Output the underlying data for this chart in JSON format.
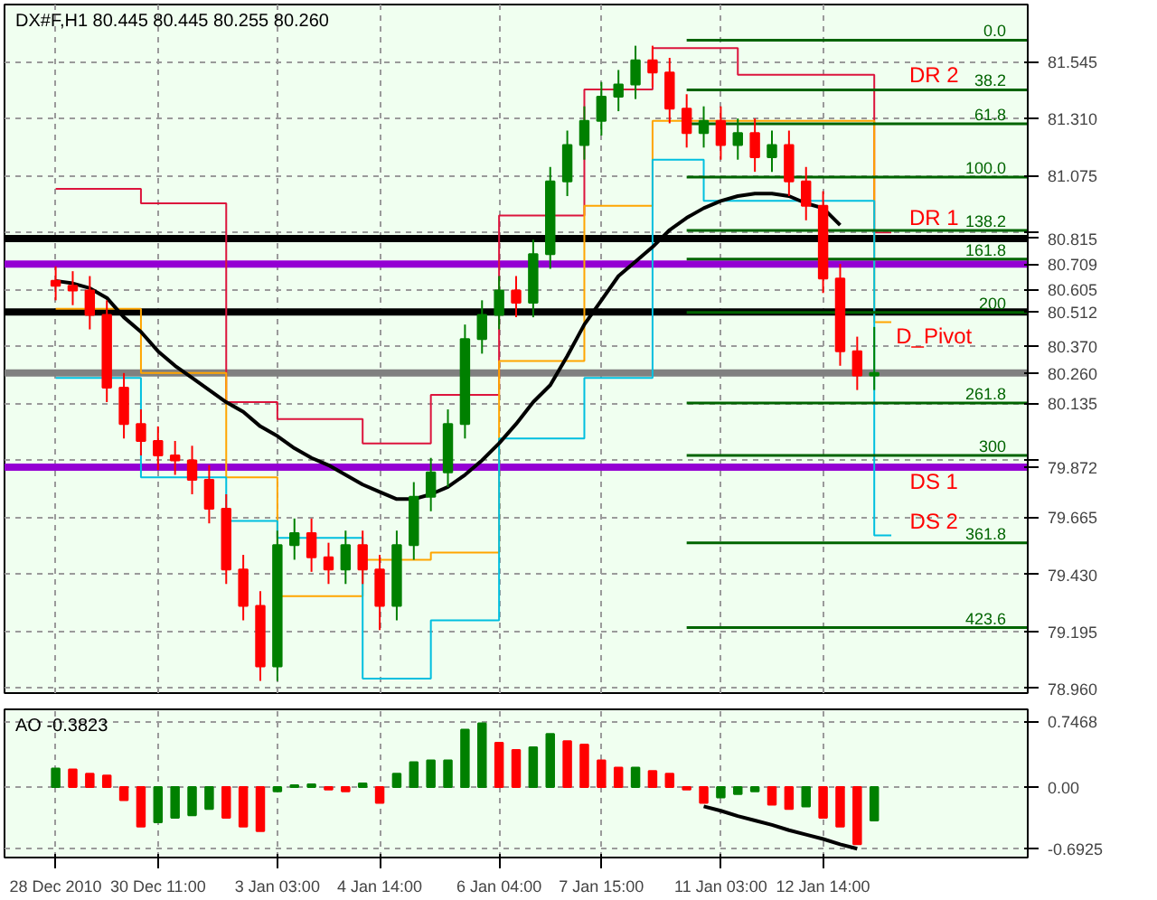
{
  "chart_data": [
    {
      "type": "candlestick",
      "title": "DX#F,H1  80.445 80.445 80.255 80.260",
      "tick_labels": "y",
      "grid": true,
      "categories": [
        null,
        null,
        null,
        null,
        null,
        null,
        null,
        null,
        null,
        null,
        null,
        null,
        null,
        null,
        null,
        null,
        null,
        null,
        null,
        null,
        null,
        null,
        null,
        null,
        null,
        null,
        null,
        null,
        null,
        null,
        null,
        null,
        null,
        null,
        null,
        null,
        null,
        null,
        null,
        null,
        null,
        null,
        null,
        null,
        null,
        null,
        null,
        null,
        null,
        null,
        null,
        null,
        null,
        null,
        null,
        null,
        null,
        null
      ],
      "ylim": [
        78.94,
        81.78
      ],
      "yticks": [
        {
          "value": 81.545,
          "label": "81.545"
        },
        {
          "value": 81.31,
          "label": "81.310"
        },
        {
          "value": 81.075,
          "label": "81.075"
        },
        {
          "value": 80.84,
          "label": null
        },
        {
          "value": 80.605,
          "label": "80.605"
        },
        {
          "value": 80.37,
          "label": "80.370"
        },
        {
          "value": 80.135,
          "label": "80.135"
        },
        {
          "value": 79.9,
          "label": null
        },
        {
          "value": 79.665,
          "label": "79.665"
        },
        {
          "value": 79.43,
          "label": "79.430"
        },
        {
          "value": 79.195,
          "label": "79.195"
        },
        {
          "value": 78.96,
          "label": "78.960"
        }
      ],
      "ohlc": [
        [
          80.64,
          80.7,
          80.56,
          80.62
        ],
        [
          80.62,
          80.68,
          80.54,
          80.6
        ],
        [
          80.6,
          80.66,
          80.44,
          80.5
        ],
        [
          80.5,
          80.56,
          80.14,
          80.2
        ],
        [
          80.2,
          80.26,
          79.99,
          80.05
        ],
        [
          80.05,
          80.11,
          79.92,
          79.98
        ],
        [
          79.98,
          80.04,
          79.86,
          79.92
        ],
        [
          79.92,
          79.98,
          79.84,
          79.9
        ],
        [
          79.9,
          79.96,
          79.76,
          79.82
        ],
        [
          79.82,
          79.88,
          79.64,
          79.7
        ],
        [
          79.7,
          79.76,
          79.39,
          79.45
        ],
        [
          79.45,
          79.51,
          79.24,
          79.3
        ],
        [
          79.3,
          79.36,
          78.99,
          79.05
        ],
        [
          79.05,
          79.61,
          78.99,
          79.55
        ],
        [
          79.55,
          79.66,
          79.49,
          79.6
        ],
        [
          79.6,
          79.66,
          79.44,
          79.5
        ],
        [
          79.5,
          79.56,
          79.39,
          79.45
        ],
        [
          79.45,
          79.61,
          79.39,
          79.55
        ],
        [
          79.55,
          79.61,
          79.39,
          79.45
        ],
        [
          79.45,
          79.51,
          79.2,
          79.3
        ],
        [
          79.3,
          79.61,
          79.24,
          79.55
        ],
        [
          79.55,
          79.81,
          79.49,
          79.75
        ],
        [
          79.75,
          79.91,
          79.69,
          79.85
        ],
        [
          79.85,
          80.11,
          79.79,
          80.05
        ],
        [
          80.05,
          80.46,
          79.99,
          80.4
        ],
        [
          80.4,
          80.56,
          80.34,
          80.5
        ],
        [
          80.5,
          80.66,
          80.44,
          80.6
        ],
        [
          80.6,
          80.66,
          80.49,
          80.55
        ],
        [
          80.55,
          80.81,
          80.49,
          80.75
        ],
        [
          80.75,
          81.11,
          80.69,
          81.05
        ],
        [
          81.05,
          81.26,
          80.99,
          81.2
        ],
        [
          81.2,
          81.36,
          81.14,
          81.3
        ],
        [
          81.3,
          81.46,
          81.24,
          81.4
        ],
        [
          81.4,
          81.51,
          81.34,
          81.45
        ],
        [
          81.45,
          81.61,
          81.39,
          81.55
        ],
        [
          81.55,
          81.61,
          81.44,
          81.5
        ],
        [
          81.5,
          81.56,
          81.29,
          81.35
        ],
        [
          81.35,
          81.41,
          81.19,
          81.25
        ],
        [
          81.25,
          81.36,
          81.19,
          81.3
        ],
        [
          81.3,
          81.36,
          81.14,
          81.2
        ],
        [
          81.2,
          81.31,
          81.14,
          81.25
        ],
        [
          81.25,
          81.31,
          81.09,
          81.15
        ],
        [
          81.15,
          81.26,
          81.09,
          81.2
        ],
        [
          81.2,
          81.26,
          80.99,
          81.05
        ],
        [
          81.05,
          81.11,
          80.89,
          80.95
        ],
        [
          80.95,
          81.01,
          80.59,
          80.65
        ],
        [
          80.65,
          80.71,
          80.29,
          80.35
        ],
        [
          80.35,
          80.41,
          80.19,
          80.25
        ],
        [
          80.25,
          80.45,
          80.19,
          80.26
        ],
        null,
        null,
        null,
        null,
        null,
        null,
        null,
        null,
        null
      ],
      "colors": [
        "#ff0000",
        "#ff0000",
        "#ff0000",
        "#ff0000",
        "#ff0000",
        "#ff0000",
        "#ff0000",
        "#ff0000",
        "#ff0000",
        "#ff0000",
        "#ff0000",
        "#ff0000",
        "#ff0000",
        "#008000",
        "#008000",
        "#ff0000",
        "#ff0000",
        "#008000",
        "#ff0000",
        "#ff0000",
        "#008000",
        "#008000",
        "#008000",
        "#008000",
        "#008000",
        "#008000",
        "#008000",
        "#ff0000",
        "#008000",
        "#008000",
        "#008000",
        "#008000",
        "#008000",
        "#008000",
        "#008000",
        "#ff0000",
        "#ff0000",
        "#ff0000",
        "#008000",
        "#ff0000",
        "#008000",
        "#ff0000",
        "#008000",
        "#ff0000",
        "#ff0000",
        "#ff0000",
        "#ff0000",
        "#ff0000",
        "#008000",
        null,
        null,
        null,
        null,
        null,
        null,
        null,
        null,
        null
      ],
      "series": [
        {
          "type": "step",
          "color": "#dc143c",
          "values": [
            81.02,
            81.02,
            81.02,
            81.02,
            81.02,
            80.96,
            80.96,
            80.96,
            80.96,
            80.96,
            80.14,
            80.14,
            80.14,
            80.07,
            80.07,
            80.07,
            80.07,
            80.07,
            79.97,
            79.97,
            79.97,
            79.97,
            80.17,
            80.17,
            80.17,
            80.17,
            80.91,
            80.91,
            80.91,
            80.91,
            80.91,
            81.43,
            81.43,
            81.43,
            81.43,
            81.6,
            81.6,
            81.6,
            81.6,
            81.6,
            81.49,
            81.49,
            81.49,
            81.49,
            81.49,
            81.49,
            81.49,
            81.49,
            80.84,
            80.84,
            null,
            null,
            null,
            null,
            null,
            null,
            null,
            null
          ]
        },
        {
          "type": "step",
          "color": "#ffa500",
          "values": [
            80.525,
            80.525,
            80.525,
            80.525,
            80.525,
            80.26,
            80.26,
            80.26,
            80.26,
            80.26,
            79.83,
            79.83,
            79.83,
            79.34,
            79.34,
            79.34,
            79.34,
            79.34,
            79.49,
            79.49,
            79.49,
            79.49,
            79.52,
            79.52,
            79.52,
            79.52,
            80.31,
            80.31,
            80.31,
            80.31,
            80.31,
            80.95,
            80.95,
            80.95,
            80.95,
            81.3,
            81.3,
            81.3,
            81.3,
            81.3,
            81.3,
            81.3,
            81.3,
            81.3,
            81.3,
            81.3,
            81.3,
            81.3,
            80.47,
            80.47,
            null,
            null,
            null,
            null,
            null,
            null,
            null,
            null
          ]
        },
        {
          "type": "step",
          "color": "#00bfdf",
          "values": [
            80.24,
            80.24,
            80.24,
            80.24,
            80.24,
            79.83,
            79.83,
            79.83,
            79.83,
            79.83,
            79.65,
            79.65,
            79.65,
            79.58,
            79.58,
            79.58,
            79.58,
            79.58,
            79.0,
            79.0,
            79.0,
            79.0,
            79.24,
            79.24,
            79.24,
            79.24,
            79.99,
            79.99,
            79.99,
            79.99,
            79.99,
            80.24,
            80.24,
            80.24,
            80.24,
            81.14,
            81.14,
            81.14,
            80.97,
            80.97,
            80.97,
            80.97,
            80.97,
            80.97,
            80.97,
            80.97,
            80.97,
            80.97,
            79.59,
            79.59,
            null,
            null,
            null,
            null,
            null,
            null,
            null,
            null
          ]
        },
        {
          "type": "line",
          "color": "#000000",
          "values": [
            80.64,
            80.63,
            80.61,
            80.57,
            80.49,
            80.43,
            80.35,
            80.29,
            80.24,
            80.19,
            80.14,
            80.1,
            80.04,
            80.0,
            79.95,
            79.91,
            79.88,
            79.84,
            79.8,
            79.77,
            79.74,
            79.74,
            79.76,
            79.79,
            79.84,
            79.9,
            79.97,
            80.05,
            80.14,
            80.21,
            80.33,
            80.46,
            80.56,
            80.66,
            80.72,
            80.78,
            80.85,
            80.9,
            80.94,
            80.97,
            80.99,
            81.0,
            81.0,
            80.99,
            80.96,
            80.94,
            80.87,
            null,
            null,
            null,
            null,
            null,
            null,
            null,
            null,
            null,
            null,
            null
          ]
        },
        {
          "type": "line",
          "name": "0.0",
          "color": "#006400",
          "values": [
            null,
            null,
            null,
            null,
            null,
            null,
            null,
            null,
            null,
            null,
            null,
            null,
            null,
            null,
            null,
            null,
            null,
            null,
            null,
            null,
            null,
            null,
            null,
            null,
            null,
            null,
            null,
            null,
            null,
            null,
            null,
            null,
            null,
            null,
            null,
            null,
            null,
            81.633,
            81.633,
            81.633,
            81.633,
            81.633,
            81.633,
            81.633,
            81.633,
            81.633,
            81.633,
            81.633,
            81.633,
            81.633,
            81.633,
            81.633,
            81.633,
            81.633,
            81.633,
            81.633,
            81.633,
            81.633
          ]
        },
        {
          "type": "line",
          "name": "38.2",
          "color": "#006400",
          "values": [
            null,
            null,
            null,
            null,
            null,
            null,
            null,
            null,
            null,
            null,
            null,
            null,
            null,
            null,
            null,
            null,
            null,
            null,
            null,
            null,
            null,
            null,
            null,
            null,
            null,
            null,
            null,
            null,
            null,
            null,
            null,
            null,
            null,
            null,
            null,
            null,
            null,
            81.428,
            81.428,
            81.428,
            81.428,
            81.428,
            81.428,
            81.428,
            81.428,
            81.428,
            81.428,
            81.428,
            81.428,
            81.428,
            81.428,
            81.428,
            81.428,
            81.428,
            81.428,
            81.428,
            81.428,
            81.428
          ]
        },
        {
          "type": "line",
          "name": "61.8",
          "color": "#006400",
          "values": [
            null,
            null,
            null,
            null,
            null,
            null,
            null,
            null,
            null,
            null,
            null,
            null,
            null,
            null,
            null,
            null,
            null,
            null,
            null,
            null,
            null,
            null,
            null,
            null,
            null,
            null,
            null,
            null,
            null,
            null,
            null,
            null,
            null,
            null,
            null,
            null,
            null,
            81.288,
            81.288,
            81.288,
            81.288,
            81.288,
            81.288,
            81.288,
            81.288,
            81.288,
            81.288,
            81.288,
            81.288,
            81.288,
            81.288,
            81.288,
            81.288,
            81.288,
            81.288,
            81.288,
            81.288,
            81.288
          ]
        },
        {
          "type": "line",
          "name": "100.0",
          "color": "#006400",
          "values": [
            null,
            null,
            null,
            null,
            null,
            null,
            null,
            null,
            null,
            null,
            null,
            null,
            null,
            null,
            null,
            null,
            null,
            null,
            null,
            null,
            null,
            null,
            null,
            null,
            null,
            null,
            null,
            null,
            null,
            null,
            null,
            null,
            null,
            null,
            null,
            null,
            null,
            81.068,
            81.068,
            81.068,
            81.068,
            81.068,
            81.068,
            81.068,
            81.068,
            81.068,
            81.068,
            81.068,
            81.068,
            81.068,
            81.068,
            81.068,
            81.068,
            81.068,
            81.068,
            81.068,
            81.068,
            81.068
          ]
        },
        {
          "type": "line",
          "name": "138.2",
          "color": "#006400",
          "values": [
            null,
            null,
            null,
            null,
            null,
            null,
            null,
            null,
            null,
            null,
            null,
            null,
            null,
            null,
            null,
            null,
            null,
            null,
            null,
            null,
            null,
            null,
            null,
            null,
            null,
            null,
            null,
            null,
            null,
            null,
            null,
            null,
            null,
            null,
            null,
            null,
            null,
            80.848,
            80.848,
            80.848,
            80.848,
            80.848,
            80.848,
            80.848,
            80.848,
            80.848,
            80.848,
            80.848,
            80.848,
            80.848,
            80.848,
            80.848,
            80.848,
            80.848,
            80.848,
            80.848,
            80.848,
            80.848
          ]
        },
        {
          "type": "line",
          "name": "161.8",
          "color": "#006400",
          "values": [
            null,
            null,
            null,
            null,
            null,
            null,
            null,
            null,
            null,
            null,
            null,
            null,
            null,
            null,
            null,
            null,
            null,
            null,
            null,
            null,
            null,
            null,
            null,
            null,
            null,
            null,
            null,
            null,
            null,
            null,
            null,
            null,
            null,
            null,
            null,
            null,
            null,
            80.73,
            80.73,
            80.73,
            80.73,
            80.73,
            80.73,
            80.73,
            80.73,
            80.73,
            80.73,
            80.73,
            80.73,
            80.73,
            80.73,
            80.73,
            80.73,
            80.73,
            80.73,
            80.73,
            80.73,
            80.73
          ]
        },
        {
          "type": "line",
          "name": "200",
          "color": "#006400",
          "values": [
            null,
            null,
            null,
            null,
            null,
            null,
            null,
            null,
            null,
            null,
            null,
            null,
            null,
            null,
            null,
            null,
            null,
            null,
            null,
            null,
            null,
            null,
            null,
            null,
            null,
            null,
            null,
            null,
            null,
            null,
            null,
            null,
            null,
            null,
            null,
            null,
            null,
            80.51,
            80.51,
            80.51,
            80.51,
            80.51,
            80.51,
            80.51,
            80.51,
            80.51,
            80.51,
            80.51,
            80.51,
            80.51,
            80.51,
            80.51,
            80.51,
            80.51,
            80.51,
            80.51,
            80.51,
            80.51
          ]
        },
        {
          "type": "line",
          "name": "261.8",
          "color": "#006400",
          "values": [
            null,
            null,
            null,
            null,
            null,
            null,
            null,
            null,
            null,
            null,
            null,
            null,
            null,
            null,
            null,
            null,
            null,
            null,
            null,
            null,
            null,
            null,
            null,
            null,
            null,
            null,
            null,
            null,
            null,
            null,
            null,
            null,
            null,
            null,
            null,
            null,
            null,
            80.136,
            80.136,
            80.136,
            80.136,
            80.136,
            80.136,
            80.136,
            80.136,
            80.136,
            80.136,
            80.136,
            80.136,
            80.136,
            80.136,
            80.136,
            80.136,
            80.136,
            80.136,
            80.136,
            80.136,
            80.136
          ]
        },
        {
          "type": "line",
          "name": "300",
          "color": "#006400",
          "values": [
            null,
            null,
            null,
            null,
            null,
            null,
            null,
            null,
            null,
            null,
            null,
            null,
            null,
            null,
            null,
            null,
            null,
            null,
            null,
            null,
            null,
            null,
            null,
            null,
            null,
            null,
            null,
            null,
            null,
            null,
            null,
            null,
            null,
            null,
            null,
            null,
            null,
            79.92,
            79.92,
            79.92,
            79.92,
            79.92,
            79.92,
            79.92,
            79.92,
            79.92,
            79.92,
            79.92,
            79.92,
            79.92,
            79.92,
            79.92,
            79.92,
            79.92,
            79.92,
            79.92,
            79.92,
            79.92
          ]
        },
        {
          "type": "line",
          "name": "361.8",
          "color": "#006400",
          "values": [
            null,
            null,
            null,
            null,
            null,
            null,
            null,
            null,
            null,
            null,
            null,
            null,
            null,
            null,
            null,
            null,
            null,
            null,
            null,
            null,
            null,
            null,
            null,
            null,
            null,
            null,
            null,
            null,
            null,
            null,
            null,
            null,
            null,
            null,
            null,
            null,
            null,
            79.56,
            79.56,
            79.56,
            79.56,
            79.56,
            79.56,
            79.56,
            79.56,
            79.56,
            79.56,
            79.56,
            79.56,
            79.56,
            79.56,
            79.56,
            79.56,
            79.56,
            79.56,
            79.56,
            79.56,
            79.56
          ]
        },
        {
          "type": "line",
          "name": "423.6",
          "color": "#006400",
          "values": [
            null,
            null,
            null,
            null,
            null,
            null,
            null,
            null,
            null,
            null,
            null,
            null,
            null,
            null,
            null,
            null,
            null,
            null,
            null,
            null,
            null,
            null,
            null,
            null,
            null,
            null,
            null,
            null,
            null,
            null,
            null,
            null,
            null,
            null,
            null,
            null,
            null,
            79.21,
            79.21,
            79.21,
            79.21,
            79.21,
            79.21,
            79.21,
            79.21,
            79.21,
            79.21,
            79.21,
            79.21,
            79.21,
            79.21,
            79.21,
            79.21,
            79.21,
            79.21,
            79.21,
            79.21,
            79.21
          ]
        }
      ],
      "ref_lines": [
        {
          "axis": "y",
          "value": 80.815,
          "label": "80.815",
          "color": "#000000"
        },
        {
          "axis": "y",
          "value": 80.709,
          "label": "80.709",
          "color": "#9400d3"
        },
        {
          "axis": "y",
          "value": 80.512,
          "label": "80.512",
          "color": "#000000"
        },
        {
          "axis": "y",
          "value": 80.26,
          "label": "80.260",
          "color": "#808080"
        },
        {
          "axis": "y",
          "value": 79.872,
          "label": "79.872",
          "color": "#9400d3"
        }
      ],
      "annotations": [
        {
          "text": "DR 2",
          "y": 81.428
        },
        {
          "text": "DR 1",
          "y": 80.84
        },
        {
          "text": "D_Pivot",
          "y": 80.47
        },
        {
          "text": "DS 1",
          "y": 79.872
        },
        {
          "text": "DS 2",
          "y": 79.59
        }
      ]
    },
    {
      "type": "bar",
      "title": "AO -0.3823",
      "grid": true,
      "categories": [
        "28 Dec 2010",
        null,
        null,
        null,
        null,
        null,
        "30 Dec 11:00",
        null,
        null,
        null,
        null,
        null,
        null,
        "3 Jan 03:00",
        null,
        null,
        null,
        null,
        null,
        "4 Jan 14:00",
        null,
        null,
        null,
        null,
        null,
        null,
        "6 Jan 04:00",
        null,
        null,
        null,
        null,
        null,
        "7 Jan 15:00",
        null,
        null,
        null,
        null,
        null,
        null,
        "11 Jan 03:00",
        null,
        null,
        null,
        null,
        null,
        "12 Jan 14:00",
        null,
        null,
        null,
        null,
        null,
        null,
        null,
        null,
        null,
        null,
        null,
        null
      ],
      "ylim": [
        -0.8,
        0.88
      ],
      "yticks": [
        0.7468,
        {
          "value": 0,
          "label": "0.00"
        },
        -0.6925
      ],
      "values": [
        0.21,
        0.2,
        0.15,
        0.13,
        -0.15,
        -0.45,
        -0.4,
        -0.35,
        -0.32,
        -0.25,
        -0.35,
        -0.45,
        -0.5,
        -0.05,
        0.02,
        0.03,
        -0.03,
        -0.05,
        0.04,
        -0.18,
        0.15,
        0.28,
        0.3,
        0.3,
        0.65,
        0.72,
        0.5,
        0.42,
        0.45,
        0.6,
        0.52,
        0.48,
        0.3,
        0.22,
        0.22,
        0.18,
        0.15,
        -0.03,
        -0.18,
        -0.12,
        -0.08,
        -0.05,
        -0.2,
        -0.25,
        -0.22,
        -0.35,
        -0.45,
        -0.65,
        -0.38,
        null,
        null,
        null,
        null,
        null,
        null,
        null,
        null,
        null
      ],
      "colors": [
        "#008000",
        "#ff0000",
        "#ff0000",
        "#ff0000",
        "#ff0000",
        "#ff0000",
        "#008000",
        "#008000",
        "#008000",
        "#008000",
        "#ff0000",
        "#ff0000",
        "#ff0000",
        "#008000",
        "#008000",
        "#008000",
        "#ff0000",
        "#ff0000",
        "#008000",
        "#ff0000",
        "#008000",
        "#008000",
        "#008000",
        "#008000",
        "#008000",
        "#008000",
        "#ff0000",
        "#ff0000",
        "#008000",
        "#008000",
        "#ff0000",
        "#ff0000",
        "#ff0000",
        "#ff0000",
        "#008000",
        "#ff0000",
        "#ff0000",
        "#ff0000",
        "#ff0000",
        "#008000",
        "#008000",
        "#008000",
        "#ff0000",
        "#ff0000",
        "#008000",
        "#ff0000",
        "#ff0000",
        "#ff0000",
        "#008000",
        null,
        null,
        null,
        null,
        null,
        null,
        null,
        null,
        null
      ],
      "series": [
        {
          "type": "line",
          "color": "#000000",
          "values": [
            null,
            null,
            null,
            null,
            null,
            null,
            null,
            null,
            null,
            null,
            null,
            null,
            null,
            null,
            null,
            null,
            null,
            null,
            null,
            null,
            null,
            null,
            null,
            null,
            null,
            null,
            null,
            null,
            null,
            null,
            null,
            null,
            null,
            null,
            null,
            null,
            null,
            null,
            -0.22,
            -0.27,
            -0.33,
            -0.38,
            -0.43,
            -0.49,
            -0.54,
            -0.59,
            -0.65,
            -0.7,
            null,
            null,
            null,
            null,
            null,
            null,
            null,
            null,
            null,
            null
          ]
        }
      ]
    }
  ]
}
